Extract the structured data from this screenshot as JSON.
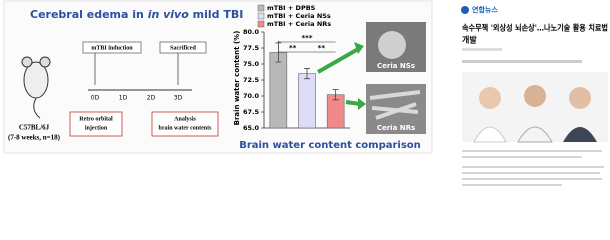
{
  "figure": {
    "title_parts": [
      "Cerebral edema in ",
      "in vivo",
      " mild TBI"
    ],
    "strain": "C57BL/6J",
    "cohort": "(7-8 weeks, n=18)",
    "steps": [
      "mTBI induction",
      "Sacrificed"
    ],
    "days": [
      "0D",
      "1D",
      "2D",
      "3D"
    ],
    "injection": [
      "Retro orbital",
      "injection"
    ],
    "analysis": [
      "Analysis",
      "brain water contents"
    ],
    "images": [
      "Ceria NSs",
      "Ceria NRs"
    ],
    "caption": "Brain water content comparison"
  },
  "chart_data": {
    "type": "bar",
    "ylabel": "Brain water content (%)",
    "categories": [
      null,
      null,
      null
    ],
    "series": [
      {
        "name": "mTBI + DPBS",
        "color": "#b8b8b8",
        "values": [
          76.8,
          null,
          null
        ],
        "errors": [
          1.5,
          null,
          null
        ]
      },
      {
        "name": "mTBI + Ceria NSs",
        "color": "#dcdcf6",
        "values": [
          null,
          73.5,
          null
        ],
        "errors": [
          null,
          0.8,
          null
        ]
      },
      {
        "name": "mTBI + Ceria NRs",
        "color": "#f08a8a",
        "values": [
          null,
          null,
          70.2
        ],
        "errors": [
          null,
          null,
          0.8
        ]
      }
    ],
    "ylim": [
      65,
      80
    ],
    "yticks": [
      {
        "value": 65,
        "label": "65.0"
      },
      {
        "value": 67.5,
        "label": "67.5"
      },
      {
        "value": 70,
        "label": "70.0"
      },
      {
        "value": 72.5,
        "label": "72.5"
      },
      {
        "value": 75,
        "label": "75.0"
      },
      {
        "value": 77.5,
        "label": "77.5"
      },
      {
        "value": 80,
        "label": "80.0"
      }
    ],
    "annotations": [
      "**",
      "***",
      "**"
    ]
  },
  "article": {
    "source": "연합뉴스",
    "headline_lines": [
      "속수무책 '외상성 뇌손상'…나노기술 활용 치료법",
      "개발"
    ]
  }
}
